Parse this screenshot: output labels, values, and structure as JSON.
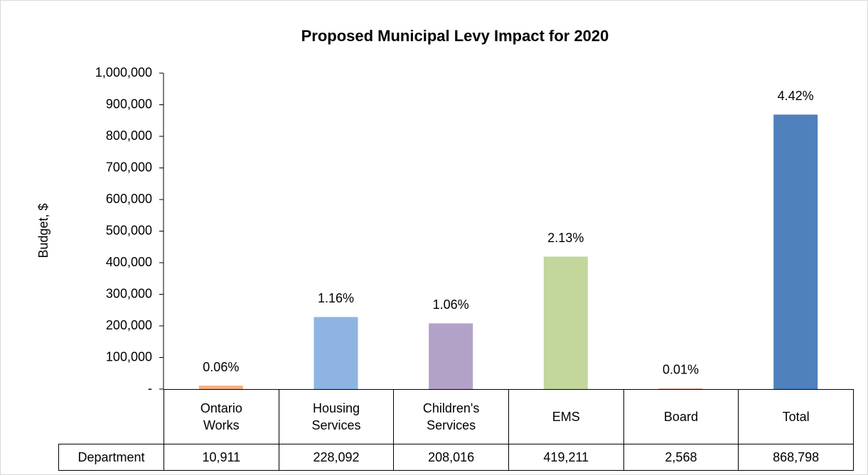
{
  "chart_data": {
    "type": "bar",
    "title": "Proposed Municipal Levy Impact for 2020",
    "ylabel": "Budget, $",
    "categories": [
      "Ontario Works",
      "Housing Services",
      "Children's Services",
      "EMS",
      "Board",
      "Total"
    ],
    "series": [
      {
        "name": "Department",
        "colors": [
          "#f4b183",
          "#8eb4e3",
          "#b3a2c7",
          "#c3d69b",
          "#e6b9a6",
          "#4f81bd"
        ],
        "values": [
          10911,
          228092,
          208016,
          419211,
          2568,
          868798
        ],
        "value_labels": [
          "10,911",
          "228,092",
          "208,016",
          "419,211",
          "2,568",
          "868,798"
        ]
      }
    ],
    "data_labels": [
      "0.06%",
      "1.16%",
      "1.06%",
      "2.13%",
      "0.01%",
      "4.42%"
    ],
    "ylim": [
      0,
      1000000
    ],
    "yticks": [
      {
        "value": 0,
        "label": "-"
      },
      {
        "value": 100000,
        "label": "100,000"
      },
      {
        "value": 200000,
        "label": "200,000"
      },
      {
        "value": 300000,
        "label": "300,000"
      },
      {
        "value": 400000,
        "label": "400,000"
      },
      {
        "value": 500000,
        "label": "500,000"
      },
      {
        "value": 600000,
        "label": "600,000"
      },
      {
        "value": 700000,
        "label": "700,000"
      },
      {
        "value": 800000,
        "label": "800,000"
      },
      {
        "value": 900000,
        "label": "900,000"
      },
      {
        "value": 1000000,
        "label": "1,000,000"
      }
    ],
    "grid": false
  }
}
